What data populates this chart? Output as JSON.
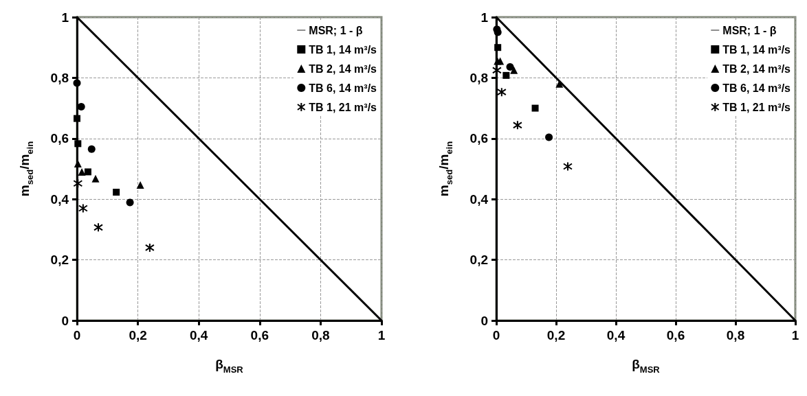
{
  "chart_data": [
    {
      "type": "scatter",
      "xlabel": "β$_{MSR}$",
      "ylabel": "m$_{sed}$/m$_{ein}$",
      "xlim": [
        0,
        1
      ],
      "ylim": [
        0,
        1
      ],
      "xticks": [
        {
          "value": 0,
          "label": "0"
        },
        {
          "value": 0.2,
          "label": "0,2"
        },
        {
          "value": 0.4,
          "label": "0,4"
        },
        {
          "value": 0.6,
          "label": "0,6"
        },
        {
          "value": 0.8,
          "label": "0,8"
        },
        {
          "value": 1,
          "label": "1"
        }
      ],
      "yticks": [
        {
          "value": 0,
          "label": "0"
        },
        {
          "value": 0.2,
          "label": "0,2"
        },
        {
          "value": 0.4,
          "label": "0,4"
        },
        {
          "value": 0.6,
          "label": "0,6"
        },
        {
          "value": 0.8,
          "label": "0,8"
        },
        {
          "value": 1,
          "label": "1"
        }
      ],
      "grid": true,
      "legend": "top right",
      "series": [
        {
          "type": "line",
          "name": "MSR; 1 - β",
          "color": "#000000",
          "x": [
            0,
            1
          ],
          "values": [
            1,
            0
          ],
          "marker": "none",
          "line_style": "solid"
        },
        {
          "name": "TB 1, 14 m³/s",
          "color": "#000000",
          "marker": "square",
          "x": [
            0.0,
            0.003,
            0.036,
            0.129
          ],
          "values": [
            0.666,
            0.583,
            0.49,
            0.423
          ]
        },
        {
          "name": "TB 2, 14 m³/s",
          "color": "#000000",
          "marker": "triangle",
          "x": [
            0.003,
            0.016,
            0.061,
            0.208
          ],
          "values": [
            0.517,
            0.49,
            0.468,
            0.447
          ]
        },
        {
          "name": "TB 6, 14 m³/s",
          "color": "#000000",
          "marker": "circle",
          "x": [
            0.0,
            0.014,
            0.048,
            0.174
          ],
          "values": [
            0.783,
            0.705,
            0.565,
            0.389
          ]
        },
        {
          "name": "TB 1, 21 m³/s",
          "color": "#000000",
          "marker": "cross",
          "x": [
            0.003,
            0.02,
            0.07,
            0.239
          ],
          "values": [
            0.452,
            0.37,
            0.307,
            0.24
          ]
        }
      ]
    },
    {
      "type": "scatter",
      "xlabel": "β$_{MSR}$",
      "ylabel": "m$_{sed}$/m$_{ein}$",
      "xlim": [
        0,
        1
      ],
      "ylim": [
        0,
        1
      ],
      "xticks": [
        {
          "value": 0,
          "label": "0"
        },
        {
          "value": 0.2,
          "label": "0,2"
        },
        {
          "value": 0.4,
          "label": "0,4"
        },
        {
          "value": 0.6,
          "label": "0,6"
        },
        {
          "value": 0.8,
          "label": "0,8"
        },
        {
          "value": 1,
          "label": "1"
        }
      ],
      "yticks": [
        {
          "value": 0,
          "label": "0"
        },
        {
          "value": 0.2,
          "label": "0,2"
        },
        {
          "value": 0.4,
          "label": "0,4"
        },
        {
          "value": 0.6,
          "label": "0,6"
        },
        {
          "value": 0.8,
          "label": "0,8"
        },
        {
          "value": 1,
          "label": "1"
        }
      ],
      "grid": true,
      "legend": "top right",
      "series": [
        {
          "type": "line",
          "name": "MSR; 1 - β",
          "color": "#000000",
          "x": [
            0,
            1
          ],
          "values": [
            1,
            0
          ],
          "marker": "none",
          "line_style": "solid"
        },
        {
          "name": "TB 1, 14 m³/s",
          "color": "#000000",
          "marker": "square",
          "x": [
            0.005,
            0.033,
            0.13
          ],
          "values": [
            0.9,
            0.808,
            0.7
          ]
        },
        {
          "name": "TB 2, 14 m³/s",
          "color": "#000000",
          "marker": "triangle",
          "x": [
            0.004,
            0.013,
            0.059,
            0.211
          ],
          "values": [
            0.855,
            0.855,
            0.825,
            0.78
          ]
        },
        {
          "name": "TB 6, 14 m³/s",
          "color": "#000000",
          "marker": "circle",
          "x": [
            0.002,
            0.005,
            0.046,
            0.176
          ],
          "values": [
            0.96,
            0.95,
            0.836,
            0.604
          ]
        },
        {
          "name": "TB 1, 21 m³/s",
          "color": "#000000",
          "marker": "cross",
          "x": [
            0.002,
            0.018,
            0.071,
            0.239
          ],
          "values": [
            0.825,
            0.753,
            0.644,
            0.508
          ]
        }
      ]
    }
  ]
}
